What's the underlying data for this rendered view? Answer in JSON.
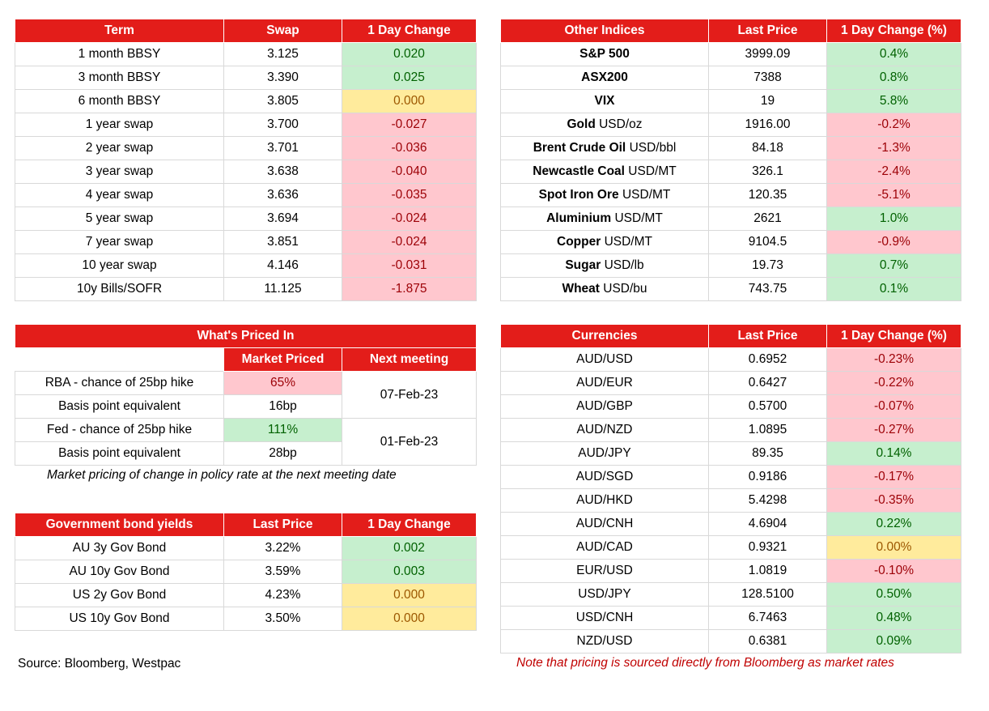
{
  "swaps": {
    "headers": [
      "Term",
      "Swap",
      "1 Day Change"
    ],
    "rows": [
      {
        "term": "1 month BBSY",
        "swap": "3.125",
        "change": "0.020",
        "status": "pos"
      },
      {
        "term": "3 month BBSY",
        "swap": "3.390",
        "change": "0.025",
        "status": "pos"
      },
      {
        "term": "6 month BBSY",
        "swap": "3.805",
        "change": "0.000",
        "status": "neu"
      },
      {
        "term": "1 year swap",
        "swap": "3.700",
        "change": "-0.027",
        "status": "neg"
      },
      {
        "term": "2 year swap",
        "swap": "3.701",
        "change": "-0.036",
        "status": "neg"
      },
      {
        "term": "3 year swap",
        "swap": "3.638",
        "change": "-0.040",
        "status": "neg"
      },
      {
        "term": "4 year swap",
        "swap": "3.636",
        "change": "-0.035",
        "status": "neg"
      },
      {
        "term": "5 year swap",
        "swap": "3.694",
        "change": "-0.024",
        "status": "neg"
      },
      {
        "term": "7 year swap",
        "swap": "3.851",
        "change": "-0.024",
        "status": "neg"
      },
      {
        "term": "10 year swap",
        "swap": "4.146",
        "change": "-0.031",
        "status": "neg"
      },
      {
        "term": "10y Bills/SOFR",
        "swap": "11.125",
        "change": "-1.875",
        "status": "neg"
      }
    ]
  },
  "indices": {
    "headers": [
      "Other Indices",
      "Last Price",
      "1 Day Change (%)"
    ],
    "rows": [
      {
        "name": "S&P 500",
        "unit": "",
        "price": "3999.09",
        "change": "0.4%",
        "status": "pos"
      },
      {
        "name": "ASX200",
        "unit": "",
        "price": "7388",
        "change": "0.8%",
        "status": "pos"
      },
      {
        "name": "VIX",
        "unit": "",
        "price": "19",
        "change": "5.8%",
        "status": "pos"
      },
      {
        "name": "Gold",
        "unit": "USD/oz",
        "price": "1916.00",
        "change": "-0.2%",
        "status": "neg"
      },
      {
        "name": "Brent Crude Oil",
        "unit": "USD/bbl",
        "price": "84.18",
        "change": "-1.3%",
        "status": "neg"
      },
      {
        "name": "Newcastle Coal",
        "unit": "USD/MT",
        "price": "326.1",
        "change": "-2.4%",
        "status": "neg"
      },
      {
        "name": "Spot Iron Ore",
        "unit": "USD/MT",
        "price": "120.35",
        "change": "-5.1%",
        "status": "neg"
      },
      {
        "name": "Aluminium",
        "unit": "USD/MT",
        "price": "2621",
        "change": "1.0%",
        "status": "pos"
      },
      {
        "name": "Copper",
        "unit": "USD/MT",
        "price": "9104.5",
        "change": "-0.9%",
        "status": "neg"
      },
      {
        "name": "Sugar",
        "unit": "USD/lb",
        "price": "19.73",
        "change": "0.7%",
        "status": "pos"
      },
      {
        "name": "Wheat",
        "unit": "USD/bu",
        "price": "743.75",
        "change": "0.1%",
        "status": "pos"
      }
    ]
  },
  "priced_in": {
    "title": "What's Priced In",
    "col_market": "Market Priced",
    "col_next": "Next meeting",
    "rba_label": "RBA - chance of 25bp hike",
    "rba_value": "65%",
    "rba_bp_label": "Basis point equivalent",
    "rba_bp": "16bp",
    "rba_date": "07-Feb-23",
    "fed_label": "Fed - chance of 25bp hike",
    "fed_value": "111%",
    "fed_bp_label": "Basis point equivalent",
    "fed_bp": "28bp",
    "fed_date": "01-Feb-23",
    "note": "Market pricing of change in policy rate at the next meeting date"
  },
  "bonds": {
    "headers": [
      "Government bond yields",
      "Last Price",
      "1 Day Change"
    ],
    "rows": [
      {
        "name": "AU 3y Gov Bond",
        "price": "3.22%",
        "change": "0.002",
        "status": "pos"
      },
      {
        "name": "AU 10y Gov Bond",
        "price": "3.59%",
        "change": "0.003",
        "status": "pos"
      },
      {
        "name": "US 2y Gov Bond",
        "price": "4.23%",
        "change": "0.000",
        "status": "neu"
      },
      {
        "name": "US 10y Gov Bond",
        "price": "3.50%",
        "change": "0.000",
        "status": "neu"
      }
    ]
  },
  "currencies": {
    "headers": [
      "Currencies",
      "Last Price",
      "1 Day Change (%)"
    ],
    "rows": [
      {
        "pair": "AUD/USD",
        "price": "0.6952",
        "change": "-0.23%",
        "status": "neg"
      },
      {
        "pair": "AUD/EUR",
        "price": "0.6427",
        "change": "-0.22%",
        "status": "neg"
      },
      {
        "pair": "AUD/GBP",
        "price": "0.5700",
        "change": "-0.07%",
        "status": "neg"
      },
      {
        "pair": "AUD/NZD",
        "price": "1.0895",
        "change": "-0.27%",
        "status": "neg"
      },
      {
        "pair": "AUD/JPY",
        "price": "89.35",
        "change": "0.14%",
        "status": "pos"
      },
      {
        "pair": "AUD/SGD",
        "price": "0.9186",
        "change": "-0.17%",
        "status": "neg"
      },
      {
        "pair": "AUD/HKD",
        "price": "5.4298",
        "change": "-0.35%",
        "status": "neg"
      },
      {
        "pair": "AUD/CNH",
        "price": "4.6904",
        "change": "0.22%",
        "status": "pos"
      },
      {
        "pair": "AUD/CAD",
        "price": "0.9321",
        "change": "0.00%",
        "status": "neu"
      },
      {
        "pair": "EUR/USD",
        "price": "1.0819",
        "change": "-0.10%",
        "status": "neg"
      },
      {
        "pair": "USD/JPY",
        "price": "128.5100",
        "change": "0.50%",
        "status": "pos"
      },
      {
        "pair": "USD/CNH",
        "price": "6.7463",
        "change": "0.48%",
        "status": "pos"
      },
      {
        "pair": "NZD/USD",
        "price": "0.6381",
        "change": "0.09%",
        "status": "pos"
      }
    ]
  },
  "footer": {
    "source": "Source: Bloomberg, Westpac",
    "disclaimer": "Note that pricing is sourced directly from Bloomberg as market rates"
  },
  "colors": {
    "header_red": "#e31d1a",
    "positive_fill": "#c6efce",
    "negative_fill": "#ffc7ce",
    "neutral_fill": "#ffeb9c",
    "disclaimer_text": "#c00000"
  }
}
